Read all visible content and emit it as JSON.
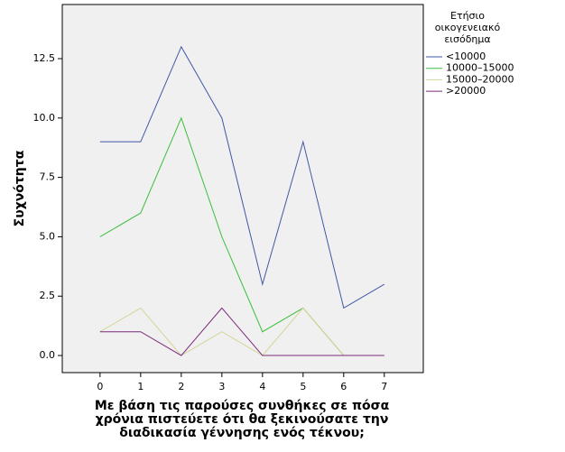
{
  "chart_data": {
    "type": "line",
    "x": [
      0,
      1,
      2,
      3,
      4,
      5,
      6,
      7
    ],
    "xlim": [
      -0.93,
      7.96
    ],
    "xticks": [
      0,
      1,
      2,
      3,
      4,
      5,
      6,
      7
    ],
    "ylim": [
      -0.72,
      14.78
    ],
    "yticks": [
      {
        "value": 0,
        "label": "0.0"
      },
      2.5,
      {
        "value": 5,
        "label": "5.0"
      },
      7.5,
      {
        "value": 10,
        "label": "10.0"
      },
      12.5
    ],
    "y_label": "Συχνότητα",
    "x_label": [
      "Με βάση τις παρούσες συνθήκες σε πόσα",
      "χρόνια πιστεύετε ότι θα ξεκινούσατε την",
      "διαδικασία γέννησης ενός τέκνου;"
    ],
    "legend_title": [
      "Ετήσιο",
      "οικογενειακό",
      "εισόδημα"
    ],
    "legend_position": "right",
    "series": [
      {
        "name": "<10000",
        "color": "#3f57a6",
        "values": [
          9,
          9,
          13,
          10,
          3,
          9,
          2,
          3
        ]
      },
      {
        "name": "10000–15000",
        "color": "#3fbf3f",
        "values": [
          5,
          6,
          10,
          5,
          1,
          2,
          0,
          0
        ]
      },
      {
        "name": "15000–20000",
        "color": "#d6d49a",
        "values": [
          1,
          2,
          0,
          1,
          0,
          2,
          0,
          0
        ]
      },
      {
        "name": ">20000",
        "color": "#7a2a7a",
        "values": [
          1,
          1,
          0,
          2,
          0,
          0,
          0,
          0
        ]
      }
    ]
  }
}
